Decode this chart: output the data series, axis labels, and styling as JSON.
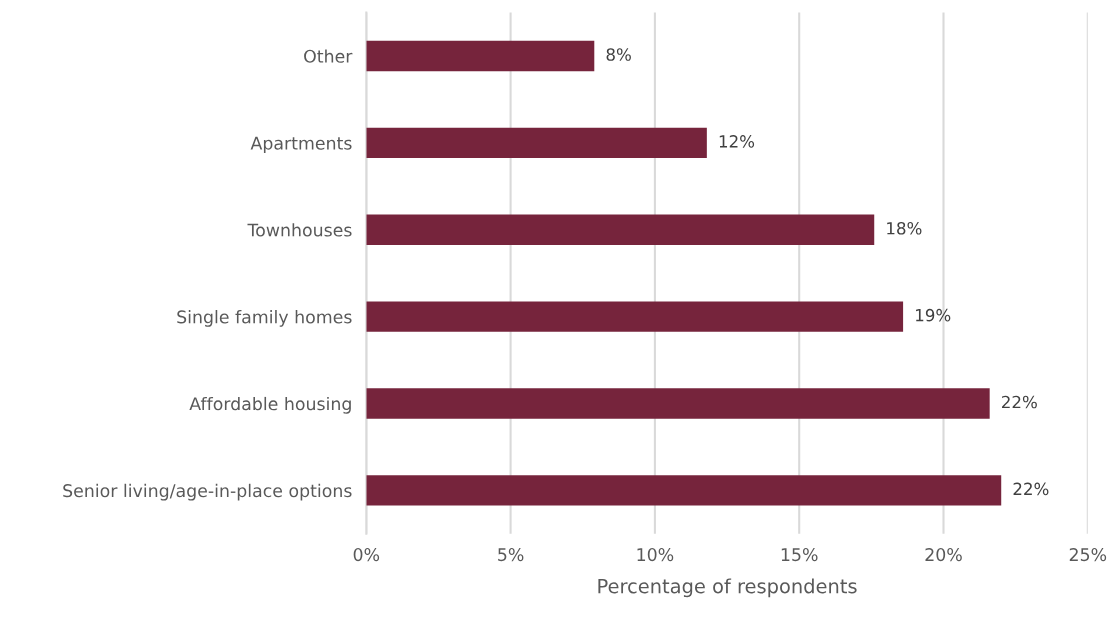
{
  "chart_data": {
    "type": "bar",
    "orientation": "horizontal",
    "categories": [
      "Other",
      "Apartments",
      "Townhouses",
      "Single family homes",
      "Affordable housing",
      "Senior living/age-in-place options"
    ],
    "values": [
      7.9,
      11.8,
      17.6,
      18.6,
      21.6,
      22.0
    ],
    "value_labels": [
      "8%",
      "12%",
      "18%",
      "19%",
      "22%",
      "22%"
    ],
    "color": "#76243c",
    "xlabel": "Percentage of respondents",
    "xlim": [
      0,
      25
    ],
    "xticks": [
      {
        "value": 0,
        "label": "0%"
      },
      {
        "value": 5,
        "label": "5%"
      },
      {
        "value": 10,
        "label": "10%"
      },
      {
        "value": 15,
        "label": "15%"
      },
      {
        "value": 20,
        "label": "20%"
      },
      {
        "value": 25,
        "label": "25%"
      }
    ],
    "grid": "x"
  }
}
